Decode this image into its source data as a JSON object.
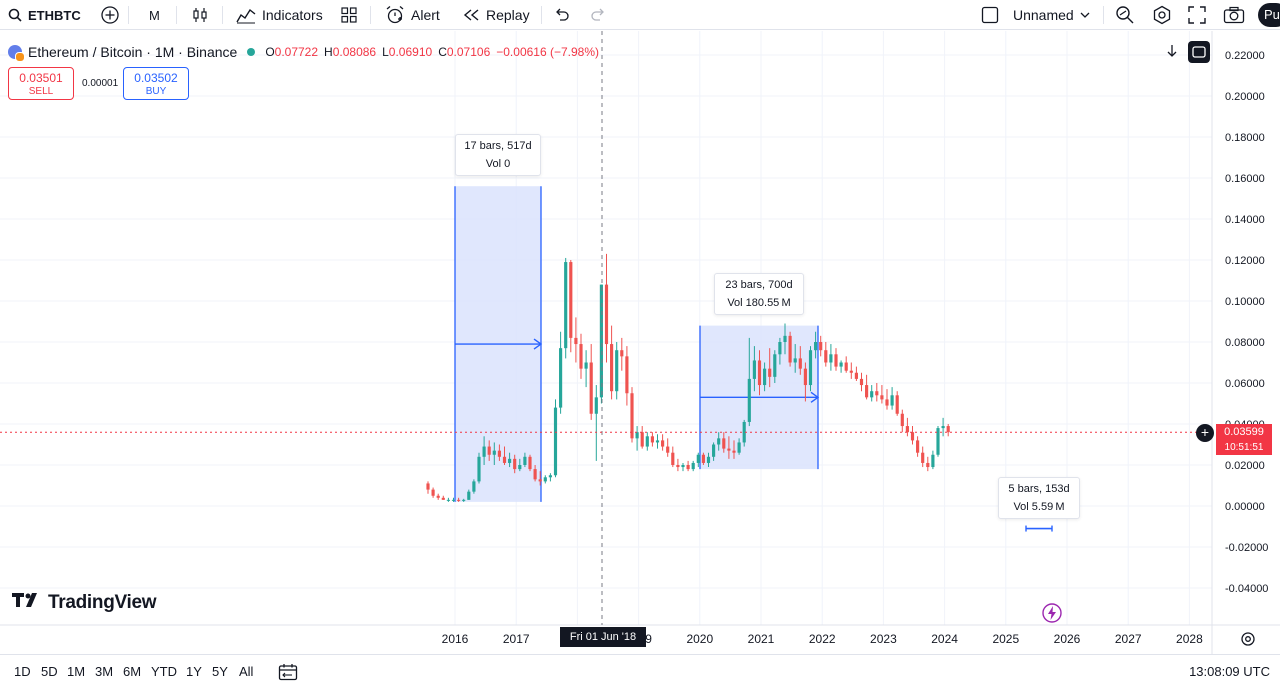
{
  "toolbar": {
    "symbol": "ETHBTC",
    "interval": "M",
    "indicators_label": "Indicators",
    "alert_label": "Alert",
    "replay_label": "Replay",
    "layout_name": "Unnamed",
    "profile_initials": "Pu"
  },
  "legend": {
    "title": "Ethereum / Bitcoin · 1M · Binance",
    "open_label": "O",
    "open": "0.07722",
    "high_label": "H",
    "high": "0.08086",
    "low_label": "L",
    "low": "0.06910",
    "close_label": "C",
    "close": "0.07106",
    "change": "−0.00616 (−7.98%)"
  },
  "trade": {
    "sell_price": "0.03501",
    "sell_label": "SELL",
    "spread": "0.00001",
    "buy_price": "0.03502",
    "buy_label": "BUY"
  },
  "measures": [
    {
      "line1": "17 bars, 517d",
      "line2": "Vol 0"
    },
    {
      "line1": "23 bars, 700d",
      "line2": "Vol 180.55 M"
    },
    {
      "line1": "5 bars, 153d",
      "line2": "Vol 5.59 M"
    }
  ],
  "crosshair": {
    "date_label": "Fri 01 Jun '18"
  },
  "current_price": {
    "value": "0.03599",
    "countdown": "10:51:51"
  },
  "brand": "TradingView",
  "ranges": [
    "1D",
    "5D",
    "1M",
    "3M",
    "6M",
    "YTD",
    "1Y",
    "5Y",
    "All"
  ],
  "clock": "13:08:09 UTC",
  "colors": {
    "up": "#26a69a",
    "down": "#ef5350",
    "measure_fill": "#dbe3fd",
    "measure_line": "#2962ff",
    "last_price": "#f23645"
  },
  "chart_data": {
    "type": "candlestick",
    "price_axis": {
      "min": -0.04,
      "max": 0.22,
      "step": 0.02,
      "tick_labels": [
        "0.22000",
        "0.20000",
        "0.18000",
        "0.16000",
        "0.14000",
        "0.12000",
        "0.10000",
        "0.08000",
        "0.06000",
        "0.04000",
        "0.02000",
        "0.00000",
        "-0.02000",
        "-0.04000"
      ]
    },
    "time_axis": {
      "year_labels": [
        "2016",
        "2017",
        "2018",
        "2019",
        "2020",
        "2021",
        "2022",
        "2023",
        "2024",
        "2025",
        "2026",
        "2027",
        "2028"
      ]
    },
    "candles": [
      [
        0.011,
        0.012,
        0.006,
        0.008
      ],
      [
        0.008,
        0.009,
        0.004,
        0.005
      ],
      [
        0.005,
        0.006,
        0.003,
        0.004
      ],
      [
        0.004,
        0.005,
        0.003,
        0.003
      ],
      [
        0.003,
        0.004,
        0.002,
        0.003
      ],
      [
        0.003,
        0.004,
        0.002,
        0.003
      ],
      [
        0.003,
        0.004,
        0.002,
        0.0025
      ],
      [
        0.0025,
        0.0035,
        0.002,
        0.003
      ],
      [
        0.003,
        0.008,
        0.003,
        0.007
      ],
      [
        0.007,
        0.013,
        0.006,
        0.012
      ],
      [
        0.012,
        0.026,
        0.011,
        0.024
      ],
      [
        0.024,
        0.034,
        0.02,
        0.029
      ],
      [
        0.029,
        0.032,
        0.022,
        0.025
      ],
      [
        0.025,
        0.031,
        0.02,
        0.027
      ],
      [
        0.027,
        0.03,
        0.022,
        0.024
      ],
      [
        0.024,
        0.029,
        0.02,
        0.021
      ],
      [
        0.021,
        0.026,
        0.019,
        0.023
      ],
      [
        0.023,
        0.025,
        0.016,
        0.018
      ],
      [
        0.018,
        0.023,
        0.017,
        0.02
      ],
      [
        0.02,
        0.026,
        0.019,
        0.024
      ],
      [
        0.024,
        0.025,
        0.017,
        0.018
      ],
      [
        0.018,
        0.02,
        0.012,
        0.013
      ],
      [
        0.013,
        0.017,
        0.01,
        0.012
      ],
      [
        0.012,
        0.015,
        0.011,
        0.014
      ],
      [
        0.014,
        0.016,
        0.012,
        0.015
      ],
      [
        0.015,
        0.052,
        0.014,
        0.048
      ],
      [
        0.048,
        0.085,
        0.045,
        0.077
      ],
      [
        0.077,
        0.121,
        0.072,
        0.119
      ],
      [
        0.119,
        0.12,
        0.075,
        0.082
      ],
      [
        0.082,
        0.092,
        0.07,
        0.079
      ],
      [
        0.079,
        0.084,
        0.062,
        0.067
      ],
      [
        0.067,
        0.076,
        0.058,
        0.07
      ],
      [
        0.07,
        0.079,
        0.042,
        0.045
      ],
      [
        0.045,
        0.059,
        0.022,
        0.053
      ],
      [
        0.053,
        0.108,
        0.05,
        0.108
      ],
      [
        0.108,
        0.123,
        0.07,
        0.079
      ],
      [
        0.079,
        0.088,
        0.052,
        0.056
      ],
      [
        0.056,
        0.08,
        0.052,
        0.076
      ],
      [
        0.076,
        0.082,
        0.066,
        0.073
      ],
      [
        0.073,
        0.078,
        0.049,
        0.055
      ],
      [
        0.055,
        0.058,
        0.031,
        0.033
      ],
      [
        0.033,
        0.039,
        0.027,
        0.036
      ],
      [
        0.036,
        0.039,
        0.028,
        0.029
      ],
      [
        0.029,
        0.036,
        0.027,
        0.034
      ],
      [
        0.034,
        0.036,
        0.029,
        0.031
      ],
      [
        0.031,
        0.035,
        0.028,
        0.032
      ],
      [
        0.032,
        0.035,
        0.027,
        0.029
      ],
      [
        0.029,
        0.033,
        0.024,
        0.026
      ],
      [
        0.026,
        0.029,
        0.019,
        0.02
      ],
      [
        0.02,
        0.023,
        0.017,
        0.019
      ],
      [
        0.019,
        0.021,
        0.017,
        0.02
      ],
      [
        0.02,
        0.022,
        0.017,
        0.018
      ],
      [
        0.018,
        0.022,
        0.017,
        0.021
      ],
      [
        0.021,
        0.026,
        0.019,
        0.025
      ],
      [
        0.025,
        0.026,
        0.02,
        0.021
      ],
      [
        0.021,
        0.026,
        0.019,
        0.024
      ],
      [
        0.024,
        0.031,
        0.022,
        0.03
      ],
      [
        0.03,
        0.036,
        0.027,
        0.033
      ],
      [
        0.033,
        0.036,
        0.026,
        0.028
      ],
      [
        0.028,
        0.034,
        0.023,
        0.027
      ],
      [
        0.027,
        0.032,
        0.023,
        0.026
      ],
      [
        0.026,
        0.033,
        0.025,
        0.031
      ],
      [
        0.031,
        0.042,
        0.029,
        0.041
      ],
      [
        0.041,
        0.082,
        0.039,
        0.062
      ],
      [
        0.062,
        0.078,
        0.056,
        0.071
      ],
      [
        0.071,
        0.076,
        0.054,
        0.059
      ],
      [
        0.059,
        0.07,
        0.056,
        0.067
      ],
      [
        0.067,
        0.077,
        0.058,
        0.063
      ],
      [
        0.063,
        0.076,
        0.06,
        0.074
      ],
      [
        0.074,
        0.082,
        0.069,
        0.08
      ],
      [
        0.08,
        0.089,
        0.074,
        0.083
      ],
      [
        0.083,
        0.085,
        0.068,
        0.07
      ],
      [
        0.07,
        0.079,
        0.065,
        0.072
      ],
      [
        0.072,
        0.078,
        0.064,
        0.067
      ],
      [
        0.067,
        0.07,
        0.051,
        0.059
      ],
      [
        0.059,
        0.078,
        0.056,
        0.076
      ],
      [
        0.076,
        0.085,
        0.072,
        0.08
      ],
      [
        0.08,
        0.083,
        0.073,
        0.076
      ],
      [
        0.076,
        0.08,
        0.068,
        0.07
      ],
      [
        0.07,
        0.079,
        0.066,
        0.074
      ],
      [
        0.074,
        0.077,
        0.066,
        0.068
      ],
      [
        0.068,
        0.071,
        0.065,
        0.07
      ],
      [
        0.07,
        0.073,
        0.065,
        0.066
      ],
      [
        0.066,
        0.07,
        0.062,
        0.065
      ],
      [
        0.065,
        0.068,
        0.061,
        0.062
      ],
      [
        0.062,
        0.065,
        0.056,
        0.059
      ],
      [
        0.059,
        0.064,
        0.052,
        0.053
      ],
      [
        0.053,
        0.059,
        0.051,
        0.056
      ],
      [
        0.056,
        0.06,
        0.051,
        0.054
      ],
      [
        0.054,
        0.059,
        0.05,
        0.052
      ],
      [
        0.052,
        0.057,
        0.047,
        0.049
      ],
      [
        0.049,
        0.058,
        0.047,
        0.054
      ],
      [
        0.054,
        0.056,
        0.044,
        0.045
      ],
      [
        0.045,
        0.047,
        0.036,
        0.039
      ],
      [
        0.039,
        0.043,
        0.034,
        0.036
      ],
      [
        0.036,
        0.039,
        0.03,
        0.032
      ],
      [
        0.032,
        0.034,
        0.024,
        0.026
      ],
      [
        0.026,
        0.029,
        0.019,
        0.021
      ],
      [
        0.021,
        0.024,
        0.017,
        0.019
      ],
      [
        0.019,
        0.027,
        0.018,
        0.025
      ],
      [
        0.025,
        0.039,
        0.024,
        0.038
      ],
      [
        0.038,
        0.043,
        0.034,
        0.039
      ],
      [
        0.039,
        0.04,
        0.034,
        0.036
      ]
    ]
  }
}
